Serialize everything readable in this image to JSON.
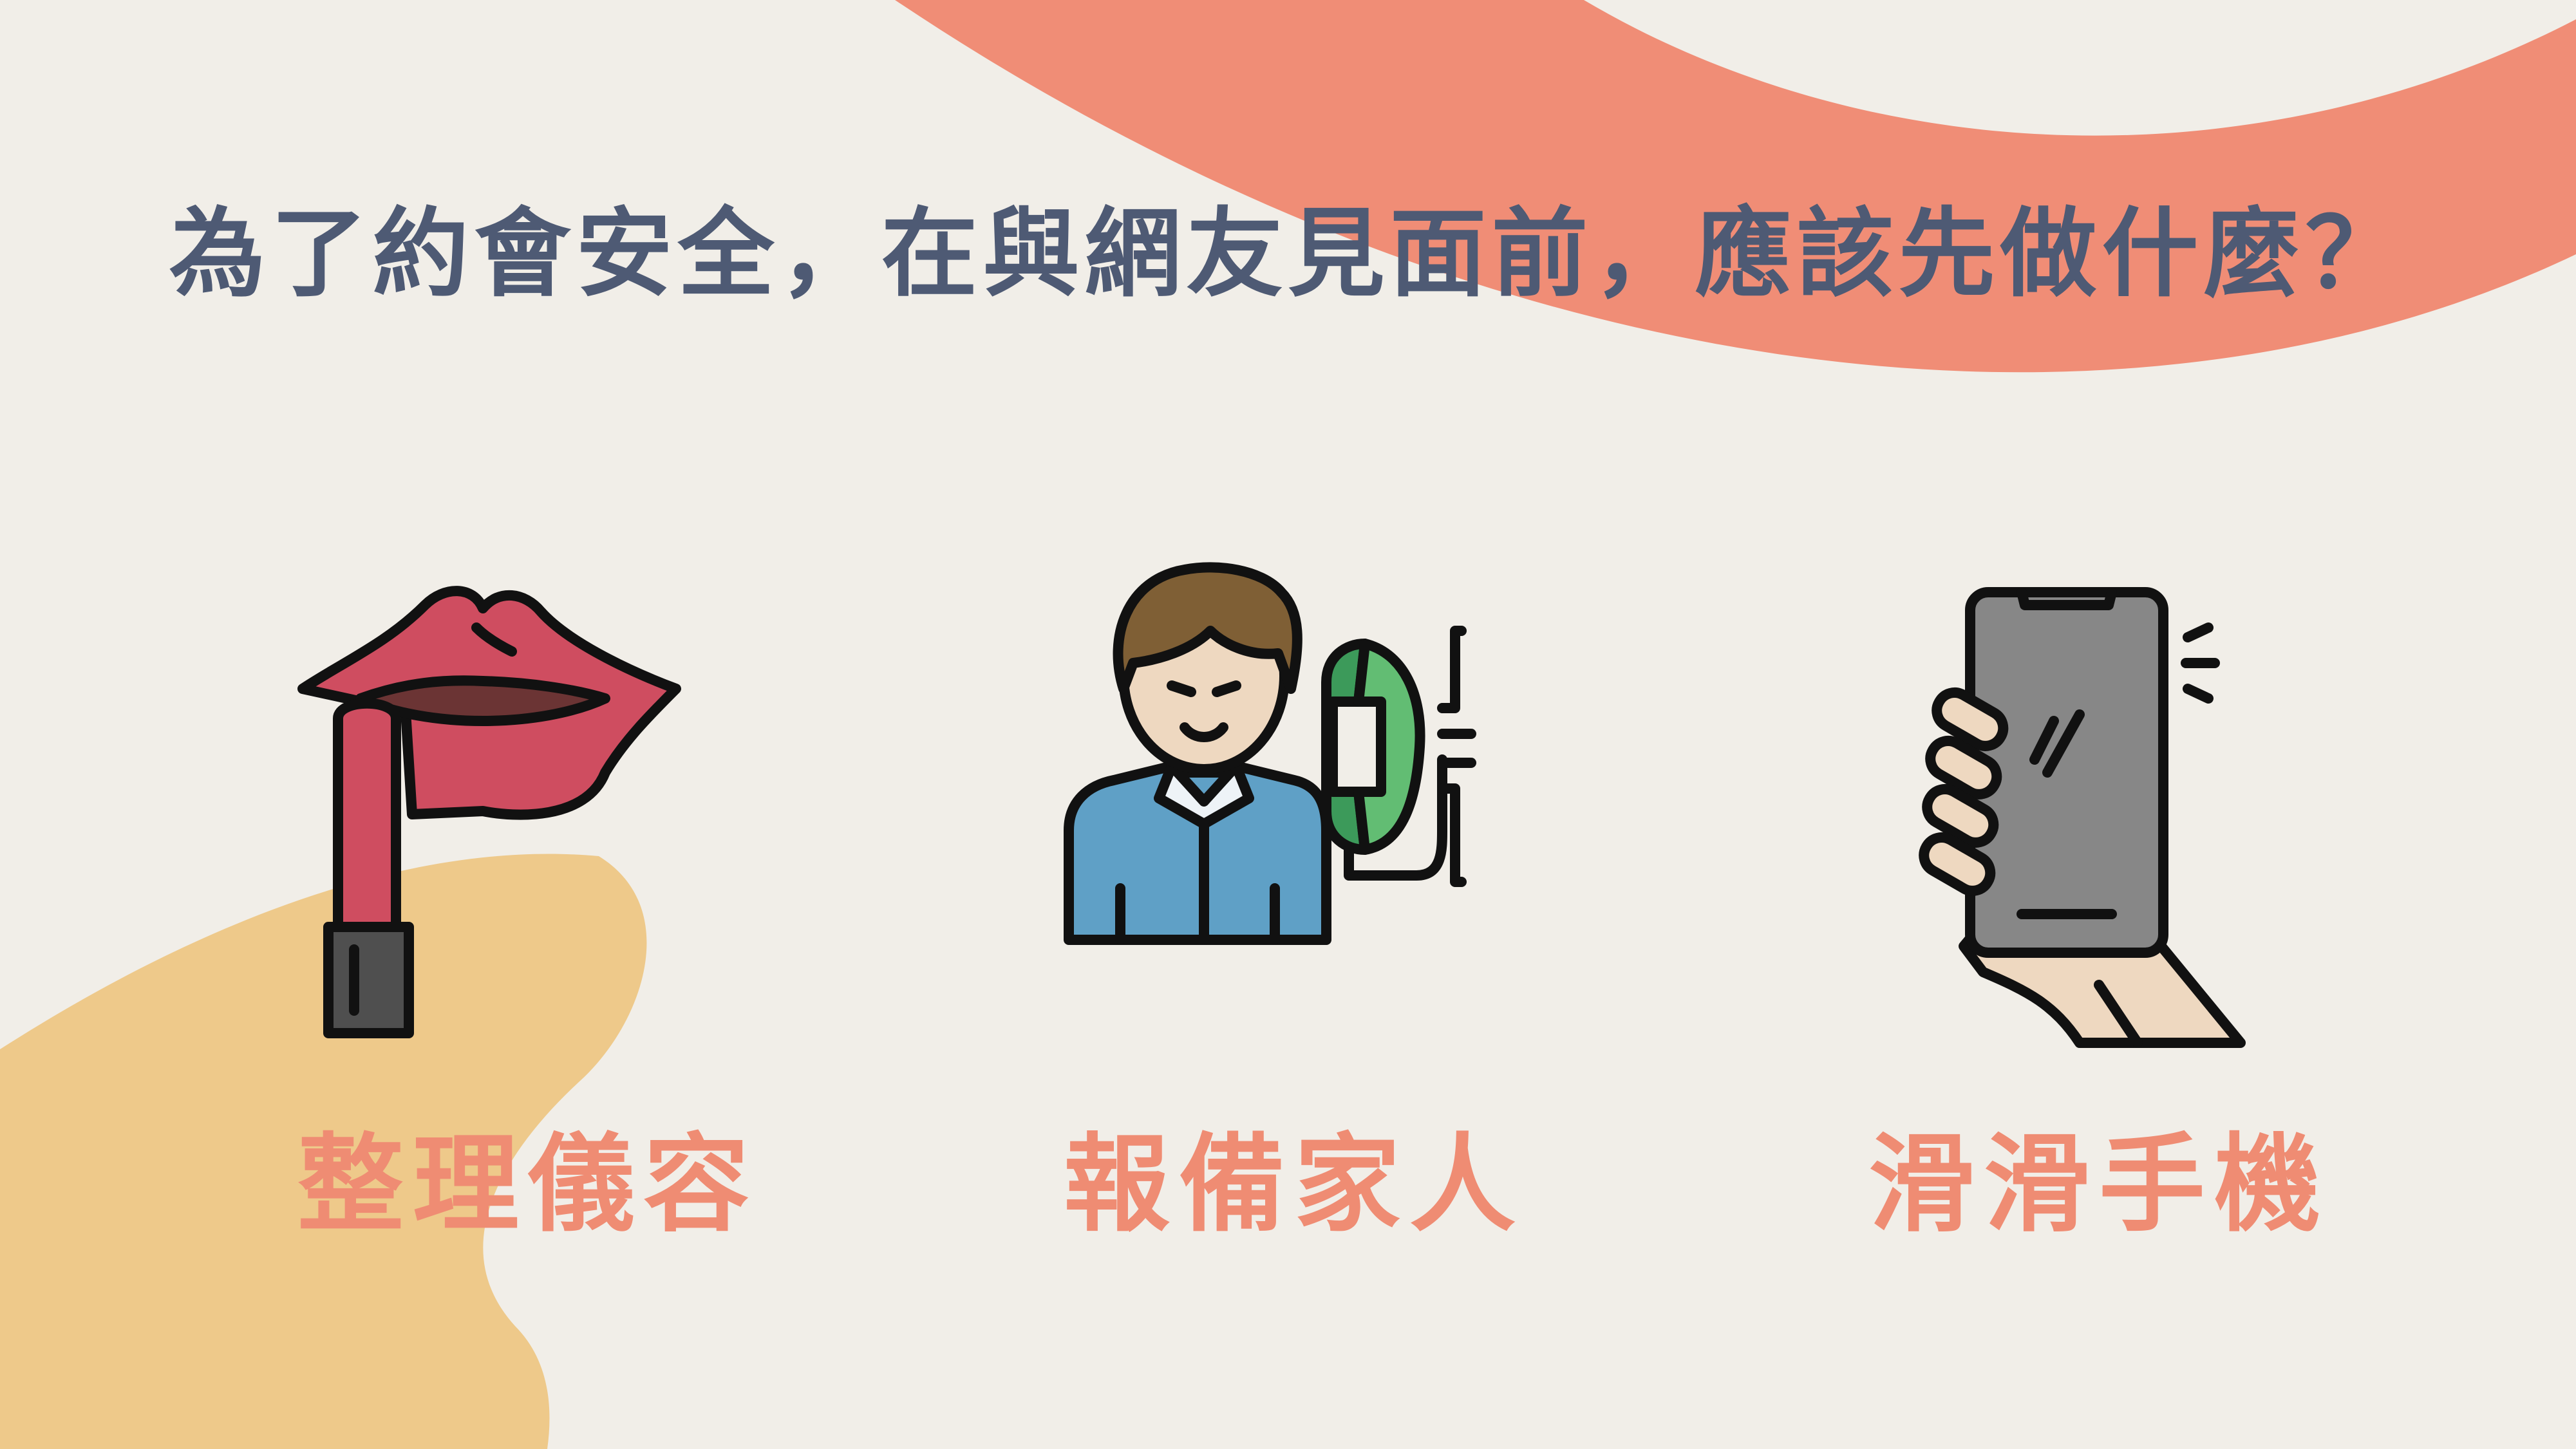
{
  "slide": {
    "question": "為了約會安全，在與網友見面前，應該先做什麼？",
    "options": [
      {
        "label": "整理儀容",
        "icon": "lipstick-lips-icon"
      },
      {
        "label": "報備家人",
        "icon": "person-phone-call-icon"
      },
      {
        "label": "滑滑手機",
        "icon": "hand-holding-smartphone-icon"
      }
    ]
  },
  "colors": {
    "background": "#f1eee8",
    "title": "#4e5a74",
    "label": "#ef8c73",
    "salmon_shape": "#f08d76",
    "sand_shape": "#eec98a"
  }
}
